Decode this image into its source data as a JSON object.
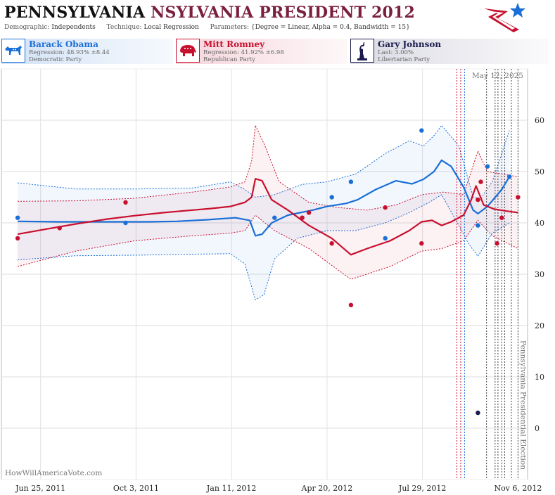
{
  "header": {
    "title_part1": "PENNSYLVANIA",
    "title_part2": "NSYLVANIA PRESIDENT 2012",
    "demographic_label": "Demographic:",
    "demographic_value": "Independents",
    "technique_label": "Technique:",
    "technique_value": "Local Regression",
    "parameters_label": "Parameters:",
    "parameters_value": "{Degree = Linear, Alpha = 0.4, Bandwidth = 15}"
  },
  "legend": {
    "obama": {
      "name": "Barack Obama",
      "line1": "Regression: 48.93% ±8.44",
      "line2": "Democratic Party",
      "color": "#1a6fd6"
    },
    "romney": {
      "name": "Mitt Romney",
      "line1": "Regression: 41.92% ±6.98",
      "line2": "Republican Party",
      "color": "#c8102e"
    },
    "johnson": {
      "name": "Gary Johnson",
      "line1": "Last: 3.00%",
      "line2": "Libertarian Party",
      "color": "#1b1b4d"
    }
  },
  "chart_data": {
    "type": "scatter",
    "title": "",
    "xlabel": "",
    "ylabel": "",
    "xlim": [
      "2011-05-15",
      "2012-11-16"
    ],
    "ylim": [
      -10,
      70
    ],
    "x_ticks": [
      "2011-06-25",
      "2011-10-03",
      "2012-01-11",
      "2012-04-20",
      "2012-07-29",
      "2012-11-06"
    ],
    "x_tick_labels": [
      "Jun 25, 2011",
      "Oct 3, 2011",
      "Jan 11, 2012",
      "Apr 20, 2012",
      "Jul 29, 2012",
      "Nov 6, 2012"
    ],
    "y_ticks": [
      0,
      10,
      20,
      30,
      40,
      50,
      60
    ],
    "grid": true,
    "date_label": "May 12, 2025",
    "election_label": "Pennsylvania Presidential Election",
    "source_label": "HowWillAmericaVote.com",
    "series": [
      {
        "name": "Barack Obama",
        "color": "#1a6fd6",
        "points": [
          [
            "2011-06-01",
            41
          ],
          [
            "2011-09-22",
            40
          ],
          [
            "2012-02-25",
            41
          ],
          [
            "2012-03-25",
            41
          ],
          [
            "2012-04-25",
            45
          ],
          [
            "2012-05-15",
            48
          ],
          [
            "2012-06-20",
            37
          ],
          [
            "2012-07-28",
            58
          ],
          [
            "2012-09-25",
            39.5
          ],
          [
            "2012-10-05",
            51
          ],
          [
            "2012-10-28",
            49
          ]
        ],
        "trend": [
          [
            "2011-06-01",
            40.3
          ],
          [
            "2011-07-15",
            40.2
          ],
          [
            "2011-09-01",
            40.2
          ],
          [
            "2011-10-15",
            40.2
          ],
          [
            "2011-11-15",
            40.3
          ],
          [
            "2011-12-15",
            40.6
          ],
          [
            "2012-01-15",
            41
          ],
          [
            "2012-01-30",
            40.5
          ],
          [
            "2012-02-05",
            37.5
          ],
          [
            "2012-02-12",
            37.8
          ],
          [
            "2012-02-22",
            40
          ],
          [
            "2012-03-10",
            41.5
          ],
          [
            "2012-04-05",
            42.5
          ],
          [
            "2012-04-20",
            43.2
          ],
          [
            "2012-05-10",
            43.8
          ],
          [
            "2012-05-22",
            44.5
          ],
          [
            "2012-06-10",
            46.5
          ],
          [
            "2012-07-01",
            48.2
          ],
          [
            "2012-07-18",
            47.6
          ],
          [
            "2012-07-30",
            48.5
          ],
          [
            "2012-08-10",
            50
          ],
          [
            "2012-08-18",
            52.2
          ],
          [
            "2012-08-28",
            51
          ],
          [
            "2012-09-10",
            47
          ],
          [
            "2012-09-20",
            42.5
          ],
          [
            "2012-09-25",
            41.8
          ],
          [
            "2012-10-05",
            43.2
          ],
          [
            "2012-10-20",
            46.5
          ],
          [
            "2012-10-28",
            49
          ]
        ],
        "upper": [
          [
            "2011-06-01",
            47.8
          ],
          [
            "2011-08-01",
            46.6
          ],
          [
            "2011-10-01",
            46.6
          ],
          [
            "2011-12-01",
            46.8
          ],
          [
            "2012-01-10",
            48
          ],
          [
            "2012-01-25",
            46.5
          ],
          [
            "2012-02-05",
            45
          ],
          [
            "2012-02-25",
            45.5
          ],
          [
            "2012-03-25",
            47.5
          ],
          [
            "2012-04-20",
            48
          ],
          [
            "2012-05-20",
            49.5
          ],
          [
            "2012-06-20",
            53.5
          ],
          [
            "2012-07-15",
            56
          ],
          [
            "2012-07-30",
            55
          ],
          [
            "2012-08-10",
            57
          ],
          [
            "2012-08-18",
            59
          ],
          [
            "2012-09-05",
            55
          ],
          [
            "2012-09-20",
            45
          ],
          [
            "2012-09-28",
            44.8
          ],
          [
            "2012-10-10",
            48
          ],
          [
            "2012-10-28",
            58
          ]
        ],
        "lower": [
          [
            "2011-06-01",
            32.8
          ],
          [
            "2011-08-01",
            33.6
          ],
          [
            "2011-10-01",
            33.7
          ],
          [
            "2011-12-01",
            33.9
          ],
          [
            "2012-01-10",
            34
          ],
          [
            "2012-01-25",
            32
          ],
          [
            "2012-02-05",
            25
          ],
          [
            "2012-02-14",
            26
          ],
          [
            "2012-02-25",
            33
          ],
          [
            "2012-03-20",
            37
          ],
          [
            "2012-04-20",
            38.5
          ],
          [
            "2012-05-20",
            38.5
          ],
          [
            "2012-06-20",
            40
          ],
          [
            "2012-07-15",
            42
          ],
          [
            "2012-08-05",
            44
          ],
          [
            "2012-08-18",
            45.5
          ],
          [
            "2012-09-05",
            39.5
          ],
          [
            "2012-09-15",
            36
          ],
          [
            "2012-09-25",
            33.5
          ],
          [
            "2012-10-10",
            38
          ],
          [
            "2012-10-28",
            40
          ]
        ]
      },
      {
        "name": "Mitt Romney",
        "color": "#c8102e",
        "points": [
          [
            "2011-06-01",
            37
          ],
          [
            "2011-07-15",
            39
          ],
          [
            "2011-09-22",
            44
          ],
          [
            "2012-03-25",
            41
          ],
          [
            "2012-04-01",
            42
          ],
          [
            "2012-04-25",
            36
          ],
          [
            "2012-05-15",
            24
          ],
          [
            "2012-06-20",
            43
          ],
          [
            "2012-07-28",
            36
          ],
          [
            "2012-09-25",
            44.5
          ],
          [
            "2012-09-28",
            48
          ],
          [
            "2012-10-15",
            36
          ],
          [
            "2012-10-20",
            41
          ],
          [
            "2012-11-06",
            45
          ]
        ],
        "trend": [
          [
            "2011-06-01",
            37.8
          ],
          [
            "2011-07-01",
            38.8
          ],
          [
            "2011-08-01",
            39.8
          ],
          [
            "2011-09-01",
            40.7
          ],
          [
            "2011-10-01",
            41.4
          ],
          [
            "2011-11-01",
            42
          ],
          [
            "2011-12-01",
            42.5
          ],
          [
            "2011-12-20",
            42.8
          ],
          [
            "2012-01-10",
            43.2
          ],
          [
            "2012-01-25",
            44
          ],
          [
            "2012-02-01",
            45
          ],
          [
            "2012-02-05",
            48.6
          ],
          [
            "2012-02-12",
            48.2
          ],
          [
            "2012-02-22",
            44.5
          ],
          [
            "2012-03-10",
            42.5
          ],
          [
            "2012-04-01",
            39.5
          ],
          [
            "2012-04-25",
            37
          ],
          [
            "2012-05-15",
            33.8
          ],
          [
            "2012-06-01",
            35
          ],
          [
            "2012-06-25",
            36.5
          ],
          [
            "2012-07-15",
            38.5
          ],
          [
            "2012-07-28",
            40.2
          ],
          [
            "2012-08-08",
            40.5
          ],
          [
            "2012-08-18",
            39.5
          ],
          [
            "2012-08-28",
            40.2
          ],
          [
            "2012-09-10",
            41.5
          ],
          [
            "2012-09-18",
            44.5
          ],
          [
            "2012-09-23",
            47.2
          ],
          [
            "2012-10-01",
            43.5
          ],
          [
            "2012-10-12",
            42.7
          ],
          [
            "2012-10-25",
            42.3
          ],
          [
            "2012-11-06",
            42
          ]
        ],
        "upper": [
          [
            "2011-06-01",
            44.2
          ],
          [
            "2011-08-01",
            44.3
          ],
          [
            "2011-10-01",
            44.8
          ],
          [
            "2011-12-01",
            46
          ],
          [
            "2012-01-10",
            47
          ],
          [
            "2012-01-25",
            48
          ],
          [
            "2012-02-01",
            52
          ],
          [
            "2012-02-05",
            59
          ],
          [
            "2012-02-15",
            55
          ],
          [
            "2012-03-01",
            48
          ],
          [
            "2012-04-01",
            44
          ],
          [
            "2012-05-01",
            43
          ],
          [
            "2012-06-01",
            42.5
          ],
          [
            "2012-07-01",
            43.5
          ],
          [
            "2012-07-28",
            45.5
          ],
          [
            "2012-08-20",
            46
          ],
          [
            "2012-09-10",
            45.5
          ],
          [
            "2012-09-25",
            54
          ],
          [
            "2012-10-05",
            50
          ],
          [
            "2012-11-06",
            49
          ]
        ],
        "lower": [
          [
            "2011-06-01",
            31.5
          ],
          [
            "2011-08-01",
            34.5
          ],
          [
            "2011-10-01",
            36.5
          ],
          [
            "2011-12-01",
            37.5
          ],
          [
            "2012-01-10",
            38
          ],
          [
            "2012-01-25",
            38.5
          ],
          [
            "2012-02-05",
            41.5
          ],
          [
            "2012-02-25",
            38.5
          ],
          [
            "2012-04-01",
            35
          ],
          [
            "2012-05-15",
            29
          ],
          [
            "2012-06-25",
            31.5
          ],
          [
            "2012-07-28",
            34.5
          ],
          [
            "2012-08-18",
            35
          ],
          [
            "2012-09-10",
            36.5
          ],
          [
            "2012-09-25",
            40.5
          ],
          [
            "2012-10-10",
            37.5
          ],
          [
            "2012-11-06",
            35
          ]
        ]
      },
      {
        "name": "Gary Johnson",
        "color": "#1b1b4d",
        "points": [
          [
            "2012-09-25",
            3
          ]
        ]
      }
    ],
    "vertical_lines": [
      {
        "date": "2012-09-03",
        "color": "#c8102e"
      },
      {
        "date": "2012-09-07",
        "color": "#c8102e"
      },
      {
        "date": "2012-09-11",
        "color": "#1a6fd6"
      },
      {
        "date": "2012-10-04",
        "color": "#444444"
      },
      {
        "date": "2012-10-13",
        "color": "#444444"
      },
      {
        "date": "2012-10-16",
        "color": "#444444"
      },
      {
        "date": "2012-10-20",
        "color": "#444444"
      },
      {
        "date": "2012-10-23",
        "color": "#444444"
      },
      {
        "date": "2012-10-30",
        "color": "#444444"
      },
      {
        "date": "2012-11-06",
        "color": "#444444"
      }
    ]
  }
}
